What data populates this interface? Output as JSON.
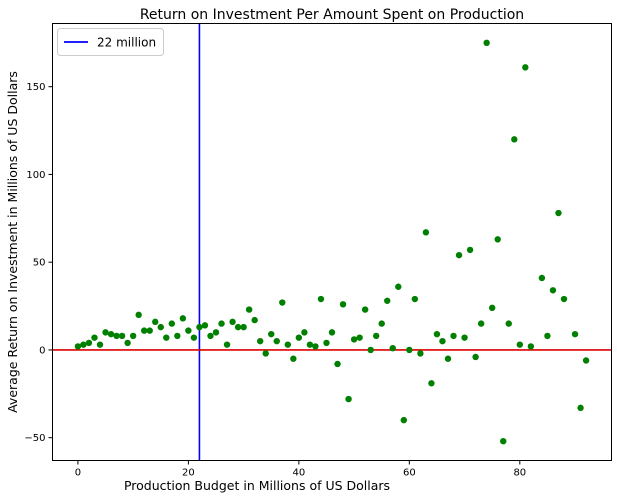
{
  "chart_data": {
    "type": "scatter",
    "title": "Return on Investment Per Amount Spent on Production",
    "xlabel": "Production Budget in Millions of US Dollars",
    "ylabel": "Average Return on Investment in Millions of US Dollars",
    "xlim": [
      -4.6,
      96.6
    ],
    "ylim": [
      -63,
      186
    ],
    "xticks": [
      0,
      20,
      40,
      60,
      80
    ],
    "yticks": [
      -50,
      0,
      50,
      100,
      150
    ],
    "grid": false,
    "legend": {
      "placement": "top-left",
      "entries": [
        {
          "label": "22 million",
          "color": "#0000ff"
        }
      ]
    },
    "vertical_line": {
      "x": 22,
      "color": "#0000ff",
      "label": "22 million"
    },
    "horizontal_line": {
      "y": 0,
      "color": "#dd0000"
    },
    "point_color": "#008000",
    "points": [
      [
        0,
        2
      ],
      [
        1,
        3
      ],
      [
        2,
        4
      ],
      [
        3,
        7
      ],
      [
        4,
        3
      ],
      [
        5,
        10
      ],
      [
        6,
        9
      ],
      [
        7,
        8
      ],
      [
        8,
        8
      ],
      [
        9,
        4
      ],
      [
        10,
        8
      ],
      [
        11,
        20
      ],
      [
        12,
        11
      ],
      [
        13,
        11
      ],
      [
        14,
        16
      ],
      [
        15,
        13
      ],
      [
        16,
        7
      ],
      [
        17,
        15
      ],
      [
        18,
        8
      ],
      [
        19,
        18
      ],
      [
        20,
        11
      ],
      [
        21,
        7
      ],
      [
        22,
        13
      ],
      [
        23,
        14
      ],
      [
        24,
        8
      ],
      [
        25,
        10
      ],
      [
        26,
        15
      ],
      [
        27,
        3
      ],
      [
        28,
        16
      ],
      [
        29,
        13
      ],
      [
        30,
        13
      ],
      [
        31,
        23
      ],
      [
        32,
        17
      ],
      [
        33,
        5
      ],
      [
        34,
        -2
      ],
      [
        35,
        9
      ],
      [
        36,
        5
      ],
      [
        37,
        27
      ],
      [
        38,
        3
      ],
      [
        39,
        -5
      ],
      [
        40,
        7
      ],
      [
        41,
        10
      ],
      [
        42,
        3
      ],
      [
        43,
        2
      ],
      [
        44,
        29
      ],
      [
        45,
        4
      ],
      [
        46,
        10
      ],
      [
        47,
        -8
      ],
      [
        48,
        26
      ],
      [
        49,
        -28
      ],
      [
        50,
        6
      ],
      [
        51,
        7
      ],
      [
        52,
        23
      ],
      [
        53,
        0
      ],
      [
        54,
        8
      ],
      [
        55,
        15
      ],
      [
        56,
        28
      ],
      [
        57,
        1
      ],
      [
        58,
        36
      ],
      [
        59,
        -40
      ],
      [
        60,
        0
      ],
      [
        61,
        29
      ],
      [
        62,
        -2
      ],
      [
        63,
        67
      ],
      [
        64,
        -19
      ],
      [
        65,
        9
      ],
      [
        66,
        5
      ],
      [
        67,
        -5
      ],
      [
        68,
        8
      ],
      [
        69,
        54
      ],
      [
        70,
        7
      ],
      [
        71,
        57
      ],
      [
        72,
        -4
      ],
      [
        73,
        15
      ],
      [
        74,
        175
      ],
      [
        75,
        24
      ],
      [
        76,
        63
      ],
      [
        77,
        -52
      ],
      [
        78,
        15
      ],
      [
        79,
        120
      ],
      [
        80,
        3
      ],
      [
        81,
        161
      ],
      [
        82,
        2
      ],
      [
        84,
        41
      ],
      [
        85,
        8
      ],
      [
        86,
        34
      ],
      [
        87,
        78
      ],
      [
        88,
        29
      ],
      [
        90,
        9
      ],
      [
        91,
        -33
      ],
      [
        92,
        -6
      ]
    ]
  }
}
